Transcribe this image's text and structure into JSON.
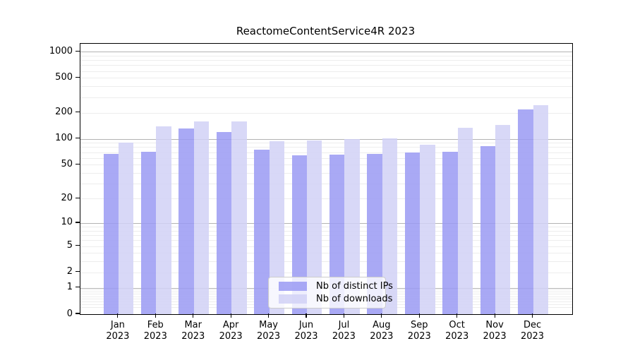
{
  "title": "ReactomeContentService4R 2023",
  "chart_data": {
    "type": "bar",
    "title": "ReactomeContentService4R 2023",
    "categories": [
      "Jan 2023",
      "Feb 2023",
      "Mar 2023",
      "Apr 2023",
      "May 2023",
      "Jun 2023",
      "Jul 2023",
      "Aug 2023",
      "Sep 2023",
      "Oct 2023",
      "Nov 2023",
      "Dec 2023"
    ],
    "series": [
      {
        "name": "Nb of distinct IPs",
        "color": "#9a9af3",
        "values": [
          67,
          71,
          131,
          120,
          75,
          64,
          65,
          67,
          70,
          71,
          82,
          217
        ]
      },
      {
        "name": "Nb of downloads",
        "color": "#d1d1f6",
        "values": [
          90,
          140,
          159,
          159,
          93,
          95,
          100,
          102,
          86,
          134,
          144,
          242
        ]
      }
    ],
    "xlabel": "",
    "ylabel": "",
    "yscale": "log1p",
    "y_ticks": [
      0,
      1,
      2,
      5,
      10,
      20,
      50,
      100,
      200,
      500,
      1000
    ],
    "ylim": [
      0,
      1230
    ],
    "grid": true,
    "grid_major_values": [
      1,
      10,
      100,
      1000
    ],
    "legend_position": "lower center",
    "bar_opacity": 0.85,
    "colors": {
      "distinct_ips_bar": "#a8a8f6",
      "downloads_bar": "#d7d7f8",
      "major_grid": "#b3b3b3",
      "minor_grid": "#ededed",
      "axis": "#000000",
      "legend_border": "#cccccc"
    }
  }
}
